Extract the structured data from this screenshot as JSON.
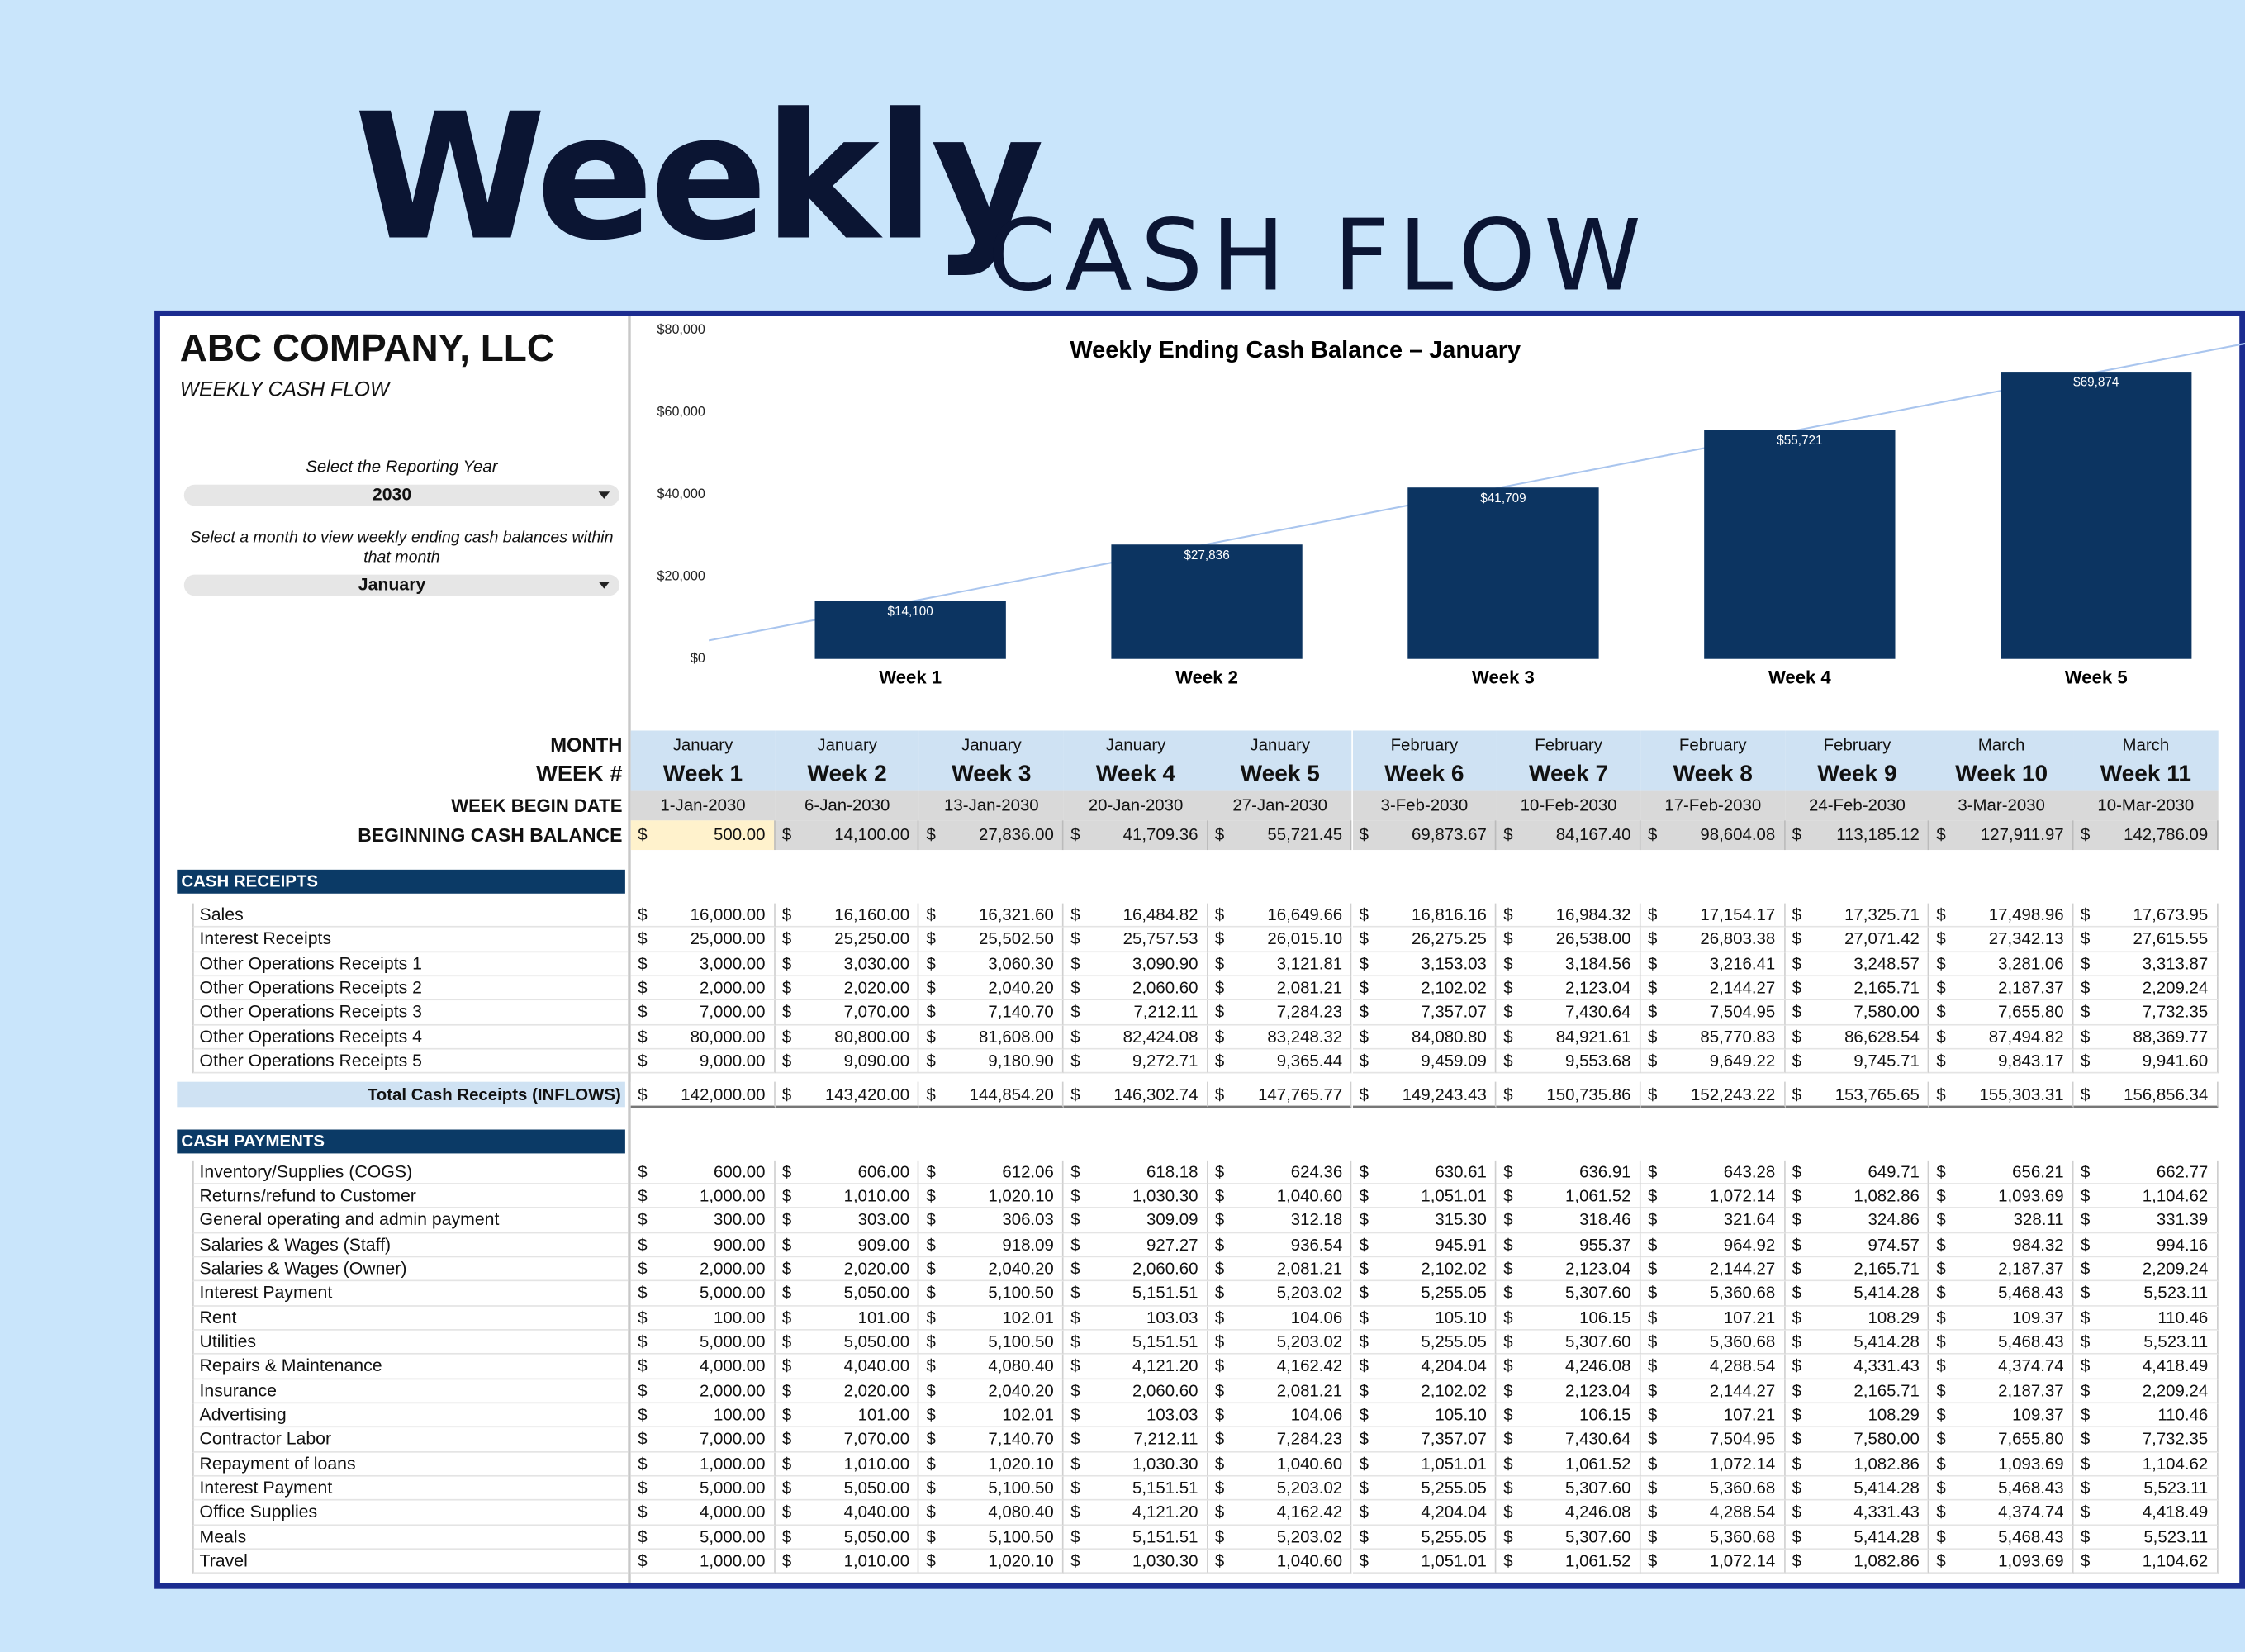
{
  "hero": {
    "title": "Weekly",
    "subtitle": "CASH FLOW"
  },
  "sidebar": {
    "company": "ABC COMPANY, LLC",
    "sheet_title": "WEEKLY CASH FLOW",
    "year_prompt": "Select the Reporting Year",
    "year": "2030",
    "month_prompt": "Select a month to view weekly ending cash balances within that month",
    "month": "January"
  },
  "chart_data": {
    "type": "bar",
    "title": "Weekly Ending Cash Balance – January",
    "categories": [
      "Week 1",
      "Week 2",
      "Week 3",
      "Week 4",
      "Week 5"
    ],
    "values": [
      14100,
      27836,
      41709,
      55721,
      69874
    ],
    "value_labels": [
      "$14,100",
      "$27,836",
      "$41,709",
      "$55,721",
      "$69,874"
    ],
    "color": "#0c3461",
    "trendline": true,
    "trendline_color": "#a9c5ee",
    "ylim": [
      0,
      80000
    ],
    "yticks": [
      {
        "value": 0,
        "label": "$0"
      },
      {
        "value": 20000,
        "label": "$20,000"
      },
      {
        "value": 40000,
        "label": "$40,000"
      },
      {
        "value": 60000,
        "label": "$60,000"
      },
      {
        "value": 80000,
        "label": "$80,000"
      }
    ]
  },
  "table": {
    "currency": "$",
    "header_labels": {
      "month": "MONTH",
      "week": "WEEK #",
      "begin_date": "WEEK BEGIN DATE",
      "beginning_balance": "BEGINNING CASH BALANCE"
    },
    "months": [
      "January",
      "January",
      "January",
      "January",
      "January",
      "February",
      "February",
      "February",
      "February",
      "March",
      "March"
    ],
    "weeks": [
      "Week 1",
      "Week 2",
      "Week 3",
      "Week 4",
      "Week 5",
      "Week 6",
      "Week 7",
      "Week 8",
      "Week 9",
      "Week 10",
      "Week 11"
    ],
    "begin_dates": [
      "1-Jan-2030",
      "6-Jan-2030",
      "13-Jan-2030",
      "20-Jan-2030",
      "27-Jan-2030",
      "3-Feb-2030",
      "10-Feb-2030",
      "17-Feb-2030",
      "24-Feb-2030",
      "3-Mar-2030",
      "10-Mar-2030"
    ],
    "beginning_balance": [
      "500.00",
      "14,100.00",
      "27,836.00",
      "41,709.36",
      "55,721.45",
      "69,873.67",
      "84,167.40",
      "98,604.08",
      "113,185.12",
      "127,911.97",
      "142,786.09"
    ],
    "receipts": {
      "title": "CASH RECEIPTS",
      "rows": [
        {
          "label": "Sales",
          "values": [
            "16,000.00",
            "16,160.00",
            "16,321.60",
            "16,484.82",
            "16,649.66",
            "16,816.16",
            "16,984.32",
            "17,154.17",
            "17,325.71",
            "17,498.96",
            "17,673.95"
          ]
        },
        {
          "label": "Interest Receipts",
          "values": [
            "25,000.00",
            "25,250.00",
            "25,502.50",
            "25,757.53",
            "26,015.10",
            "26,275.25",
            "26,538.00",
            "26,803.38",
            "27,071.42",
            "27,342.13",
            "27,615.55"
          ]
        },
        {
          "label": "Other Operations Receipts 1",
          "values": [
            "3,000.00",
            "3,030.00",
            "3,060.30",
            "3,090.90",
            "3,121.81",
            "3,153.03",
            "3,184.56",
            "3,216.41",
            "3,248.57",
            "3,281.06",
            "3,313.87"
          ]
        },
        {
          "label": "Other Operations Receipts 2",
          "values": [
            "2,000.00",
            "2,020.00",
            "2,040.20",
            "2,060.60",
            "2,081.21",
            "2,102.02",
            "2,123.04",
            "2,144.27",
            "2,165.71",
            "2,187.37",
            "2,209.24"
          ]
        },
        {
          "label": "Other Operations Receipts 3",
          "values": [
            "7,000.00",
            "7,070.00",
            "7,140.70",
            "7,212.11",
            "7,284.23",
            "7,357.07",
            "7,430.64",
            "7,504.95",
            "7,580.00",
            "7,655.80",
            "7,732.35"
          ]
        },
        {
          "label": "Other Operations Receipts 4",
          "values": [
            "80,000.00",
            "80,800.00",
            "81,608.00",
            "82,424.08",
            "83,248.32",
            "84,080.80",
            "84,921.61",
            "85,770.83",
            "86,628.54",
            "87,494.82",
            "88,369.77"
          ]
        },
        {
          "label": "Other Operations Receipts 5",
          "values": [
            "9,000.00",
            "9,090.00",
            "9,180.90",
            "9,272.71",
            "9,365.44",
            "9,459.09",
            "9,553.68",
            "9,649.22",
            "9,745.71",
            "9,843.17",
            "9,941.60"
          ]
        }
      ],
      "total": {
        "label": "Total Cash Receipts (INFLOWS)",
        "values": [
          "142,000.00",
          "143,420.00",
          "144,854.20",
          "146,302.74",
          "147,765.77",
          "149,243.43",
          "150,735.86",
          "152,243.22",
          "153,765.65",
          "155,303.31",
          "156,856.34"
        ]
      }
    },
    "payments": {
      "title": "CASH PAYMENTS",
      "rows": [
        {
          "label": "Inventory/Supplies (COGS)",
          "values": [
            "600.00",
            "606.00",
            "612.06",
            "618.18",
            "624.36",
            "630.61",
            "636.91",
            "643.28",
            "649.71",
            "656.21",
            "662.77"
          ]
        },
        {
          "label": "Returns/refund to Customer",
          "values": [
            "1,000.00",
            "1,010.00",
            "1,020.10",
            "1,030.30",
            "1,040.60",
            "1,051.01",
            "1,061.52",
            "1,072.14",
            "1,082.86",
            "1,093.69",
            "1,104.62"
          ]
        },
        {
          "label": "General operating and admin payment",
          "values": [
            "300.00",
            "303.00",
            "306.03",
            "309.09",
            "312.18",
            "315.30",
            "318.46",
            "321.64",
            "324.86",
            "328.11",
            "331.39"
          ]
        },
        {
          "label": "Salaries & Wages (Staff)",
          "values": [
            "900.00",
            "909.00",
            "918.09",
            "927.27",
            "936.54",
            "945.91",
            "955.37",
            "964.92",
            "974.57",
            "984.32",
            "994.16"
          ]
        },
        {
          "label": "Salaries & Wages (Owner)",
          "values": [
            "2,000.00",
            "2,020.00",
            "2,040.20",
            "2,060.60",
            "2,081.21",
            "2,102.02",
            "2,123.04",
            "2,144.27",
            "2,165.71",
            "2,187.37",
            "2,209.24"
          ]
        },
        {
          "label": "Interest Payment",
          "values": [
            "5,000.00",
            "5,050.00",
            "5,100.50",
            "5,151.51",
            "5,203.02",
            "5,255.05",
            "5,307.60",
            "5,360.68",
            "5,414.28",
            "5,468.43",
            "5,523.11"
          ]
        },
        {
          "label": "Rent",
          "values": [
            "100.00",
            "101.00",
            "102.01",
            "103.03",
            "104.06",
            "105.10",
            "106.15",
            "107.21",
            "108.29",
            "109.37",
            "110.46"
          ]
        },
        {
          "label": "Utilities",
          "values": [
            "5,000.00",
            "5,050.00",
            "5,100.50",
            "5,151.51",
            "5,203.02",
            "5,255.05",
            "5,307.60",
            "5,360.68",
            "5,414.28",
            "5,468.43",
            "5,523.11"
          ]
        },
        {
          "label": "Repairs & Maintenance",
          "values": [
            "4,000.00",
            "4,040.00",
            "4,080.40",
            "4,121.20",
            "4,162.42",
            "4,204.04",
            "4,246.08",
            "4,288.54",
            "4,331.43",
            "4,374.74",
            "4,418.49"
          ]
        },
        {
          "label": "Insurance",
          "values": [
            "2,000.00",
            "2,020.00",
            "2,040.20",
            "2,060.60",
            "2,081.21",
            "2,102.02",
            "2,123.04",
            "2,144.27",
            "2,165.71",
            "2,187.37",
            "2,209.24"
          ]
        },
        {
          "label": "Advertising",
          "values": [
            "100.00",
            "101.00",
            "102.01",
            "103.03",
            "104.06",
            "105.10",
            "106.15",
            "107.21",
            "108.29",
            "109.37",
            "110.46"
          ]
        },
        {
          "label": "Contractor Labor",
          "values": [
            "7,000.00",
            "7,070.00",
            "7,140.70",
            "7,212.11",
            "7,284.23",
            "7,357.07",
            "7,430.64",
            "7,504.95",
            "7,580.00",
            "7,655.80",
            "7,732.35"
          ]
        },
        {
          "label": "Repayment of loans",
          "values": [
            "1,000.00",
            "1,010.00",
            "1,020.10",
            "1,030.30",
            "1,040.60",
            "1,051.01",
            "1,061.52",
            "1,072.14",
            "1,082.86",
            "1,093.69",
            "1,104.62"
          ]
        },
        {
          "label": "Interest Payment",
          "values": [
            "5,000.00",
            "5,050.00",
            "5,100.50",
            "5,151.51",
            "5,203.02",
            "5,255.05",
            "5,307.60",
            "5,360.68",
            "5,414.28",
            "5,468.43",
            "5,523.11"
          ]
        },
        {
          "label": "Office Supplies",
          "values": [
            "4,000.00",
            "4,040.00",
            "4,080.40",
            "4,121.20",
            "4,162.42",
            "4,204.04",
            "4,246.08",
            "4,288.54",
            "4,331.43",
            "4,374.74",
            "4,418.49"
          ]
        },
        {
          "label": "Meals",
          "values": [
            "5,000.00",
            "5,050.00",
            "5,100.50",
            "5,151.51",
            "5,203.02",
            "5,255.05",
            "5,307.60",
            "5,360.68",
            "5,414.28",
            "5,468.43",
            "5,523.11"
          ]
        },
        {
          "label": "Travel",
          "values": [
            "1,000.00",
            "1,010.00",
            "1,020.10",
            "1,030.30",
            "1,040.60",
            "1,051.01",
            "1,061.52",
            "1,072.14",
            "1,082.86",
            "1,093.69",
            "1,104.62"
          ]
        }
      ]
    }
  }
}
